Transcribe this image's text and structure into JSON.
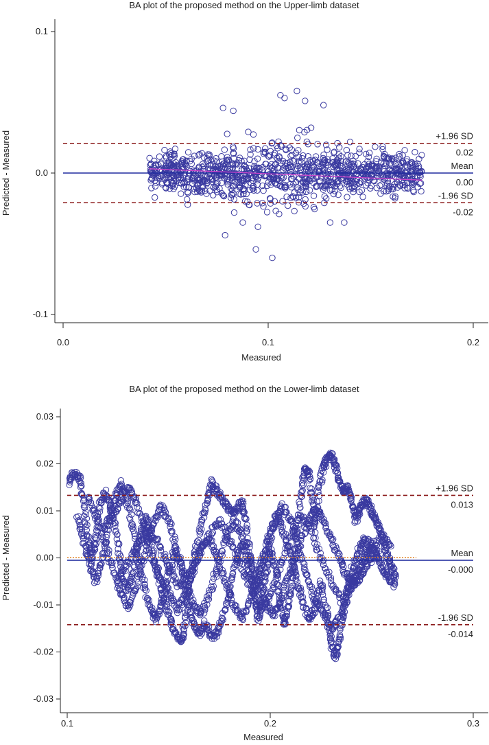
{
  "chart_data": [
    {
      "type": "scatter",
      "title": "BA plot of the proposed method on the Upper-limb dataset",
      "xlabel": "Measured",
      "ylabel": "Predicted - Measured",
      "xlim": [
        0.0,
        0.2
      ],
      "ylim": [
        -0.1,
        0.1
      ],
      "xticks": [
        0.0,
        0.1,
        0.2
      ],
      "xtick_labels": [
        "0.0",
        "0.1",
        "0.2"
      ],
      "yticks": [
        0.1,
        0.0,
        -0.1
      ],
      "ytick_labels": [
        "0.1",
        "0.0",
        "-0.1"
      ],
      "grid": false,
      "colors": {
        "points": "#3a3aa0",
        "mean": "#1f2a9e",
        "sd": "#8b1a1a",
        "trend": "#cc44cc"
      },
      "lines": [
        {
          "label": "+1.96 SD",
          "value_label": "0.02",
          "y": 0.021,
          "style": "dashed"
        },
        {
          "label": "Mean",
          "value_label": "0.00",
          "y": 0.0,
          "style": "solid"
        },
        {
          "label": "-1.96 SD",
          "value_label": "-0.02",
          "y": -0.021,
          "style": "dashed"
        }
      ],
      "trend": {
        "x": [
          0.042,
          0.175
        ],
        "y": [
          0.003,
          -0.005
        ]
      },
      "point_cloud": {
        "x_range": [
          0.042,
          0.175
        ],
        "y_sd": 0.011,
        "count": 1100
      },
      "outliers": {
        "x": [
          0.094,
          0.095,
          0.102,
          0.106,
          0.114,
          0.079,
          0.078,
          0.083,
          0.127,
          0.118,
          0.108
        ],
        "y": [
          -0.054,
          -0.038,
          -0.06,
          0.055,
          0.058,
          -0.044,
          0.046,
          0.044,
          0.048,
          0.051,
          0.053
        ]
      }
    },
    {
      "type": "scatter",
      "title": "BA plot of the proposed method on the Lower-limb dataset",
      "xlabel": "Measured",
      "ylabel": "Predicted - Measured",
      "xlim": [
        0.1,
        0.3
      ],
      "ylim": [
        -0.03,
        0.03
      ],
      "xticks": [
        0.1,
        0.2,
        0.3
      ],
      "xtick_labels": [
        "0.1",
        "0.2",
        "0.3"
      ],
      "yticks": [
        0.03,
        0.02,
        0.01,
        0.0,
        -0.01,
        -0.02,
        -0.03
      ],
      "ytick_labels": [
        "0.03",
        "0.02",
        "0.01",
        "0.00",
        "-0.01",
        "-0.02",
        "-0.03"
      ],
      "grid": false,
      "colors": {
        "points": "#3a3aa0",
        "mean": "#1f2a9e",
        "sd": "#8b1a1a",
        "trend": "#e08020"
      },
      "lines": [
        {
          "label": "+1.96 SD",
          "value_label": "0.013",
          "y": 0.0133,
          "style": "dashed"
        },
        {
          "label": "Mean",
          "value_label": "-0.000",
          "y": -0.0005,
          "style": "solid"
        },
        {
          "label": "-1.96 SD",
          "value_label": "-0.014",
          "y": -0.0142,
          "style": "dashed"
        }
      ],
      "trend": {
        "x": [
          0.1,
          0.272
        ],
        "y": [
          0.0001,
          0.0001
        ]
      },
      "trajectories": [
        [
          [
            0.101,
            0.016
          ],
          [
            0.103,
            0.018
          ],
          [
            0.106,
            0.017
          ],
          [
            0.108,
            0.012
          ],
          [
            0.11,
            0.005
          ],
          [
            0.112,
            0.0
          ],
          [
            0.114,
            0.004
          ],
          [
            0.116,
            0.011
          ],
          [
            0.119,
            0.014
          ],
          [
            0.122,
            0.01
          ],
          [
            0.125,
            0.003
          ],
          [
            0.127,
            -0.004
          ],
          [
            0.13,
            -0.007
          ],
          [
            0.133,
            -0.002
          ],
          [
            0.136,
            0.005
          ],
          [
            0.139,
            0.009
          ],
          [
            0.141,
            0.004
          ],
          [
            0.144,
            -0.003
          ],
          [
            0.147,
            -0.008
          ],
          [
            0.15,
            -0.012
          ],
          [
            0.153,
            -0.016
          ],
          [
            0.156,
            -0.018
          ],
          [
            0.158,
            -0.014
          ],
          [
            0.16,
            -0.006
          ],
          [
            0.163,
            0.001
          ],
          [
            0.166,
            0.007
          ],
          [
            0.169,
            0.012
          ],
          [
            0.171,
            0.016
          ],
          [
            0.174,
            0.014
          ],
          [
            0.177,
            0.012
          ],
          [
            0.18,
            0.01
          ],
          [
            0.183,
            0.01
          ],
          [
            0.186,
            0.012
          ],
          [
            0.188,
            0.008
          ],
          [
            0.19,
            0.0
          ],
          [
            0.192,
            -0.008
          ],
          [
            0.194,
            -0.013
          ],
          [
            0.196,
            -0.009
          ],
          [
            0.198,
            -0.003
          ],
          [
            0.2,
            0.002
          ],
          [
            0.203,
            -0.003
          ],
          [
            0.205,
            -0.01
          ],
          [
            0.207,
            -0.014
          ],
          [
            0.209,
            -0.01
          ],
          [
            0.211,
            -0.004
          ],
          [
            0.213,
            0.005
          ],
          [
            0.215,
            0.013
          ],
          [
            0.217,
            0.019
          ],
          [
            0.219,
            0.018
          ],
          [
            0.221,
            0.012
          ],
          [
            0.222,
            0.006
          ],
          [
            0.224,
            0.014
          ],
          [
            0.226,
            0.019
          ],
          [
            0.228,
            0.021
          ],
          [
            0.23,
            0.022
          ],
          [
            0.232,
            0.02
          ],
          [
            0.234,
            0.016
          ],
          [
            0.236,
            0.014
          ],
          [
            0.238,
            0.015
          ],
          [
            0.24,
            0.012
          ],
          [
            0.242,
            0.008
          ],
          [
            0.244,
            0.01
          ],
          [
            0.246,
            0.012
          ],
          [
            0.248,
            0.012
          ],
          [
            0.25,
            0.01
          ],
          [
            0.252,
            0.008
          ],
          [
            0.254,
            0.006
          ],
          [
            0.256,
            0.003
          ],
          [
            0.258,
            0.0
          ],
          [
            0.26,
            -0.002
          ],
          [
            0.262,
            -0.005
          ]
        ],
        [
          [
            0.105,
            0.009
          ],
          [
            0.108,
            0.004
          ],
          [
            0.111,
            -0.001
          ],
          [
            0.114,
            -0.005
          ],
          [
            0.117,
            -0.001
          ],
          [
            0.12,
            0.006
          ],
          [
            0.123,
            0.012
          ],
          [
            0.126,
            0.016
          ],
          [
            0.129,
            0.013
          ],
          [
            0.132,
            0.007
          ],
          [
            0.135,
            0.0
          ],
          [
            0.138,
            -0.006
          ],
          [
            0.141,
            -0.011
          ],
          [
            0.144,
            -0.013
          ],
          [
            0.147,
            -0.009
          ],
          [
            0.15,
            -0.003
          ],
          [
            0.153,
            0.002
          ],
          [
            0.156,
            -0.002
          ],
          [
            0.159,
            -0.009
          ],
          [
            0.162,
            -0.014
          ],
          [
            0.165,
            -0.016
          ],
          [
            0.168,
            -0.014
          ],
          [
            0.171,
            -0.017
          ],
          [
            0.174,
            -0.016
          ],
          [
            0.177,
            -0.012
          ],
          [
            0.18,
            -0.007
          ],
          [
            0.183,
            -0.001
          ],
          [
            0.186,
            0.003
          ],
          [
            0.189,
            -0.002
          ],
          [
            0.192,
            -0.007
          ],
          [
            0.195,
            -0.004
          ],
          [
            0.198,
            0.001
          ],
          [
            0.201,
            0.006
          ],
          [
            0.204,
            0.009
          ],
          [
            0.207,
            0.005
          ],
          [
            0.21,
            0.0
          ],
          [
            0.213,
            -0.005
          ],
          [
            0.216,
            -0.009
          ],
          [
            0.219,
            -0.013
          ],
          [
            0.222,
            -0.011
          ],
          [
            0.225,
            -0.005
          ],
          [
            0.228,
            -0.012
          ],
          [
            0.23,
            -0.018
          ],
          [
            0.232,
            -0.021
          ],
          [
            0.234,
            -0.018
          ],
          [
            0.236,
            -0.012
          ],
          [
            0.238,
            -0.007
          ],
          [
            0.24,
            -0.003
          ],
          [
            0.243,
            0.001
          ],
          [
            0.246,
            0.004
          ],
          [
            0.249,
            0.003
          ],
          [
            0.252,
            0.001
          ],
          [
            0.255,
            -0.002
          ],
          [
            0.258,
            -0.004
          ],
          [
            0.261,
            -0.006
          ]
        ],
        [
          [
            0.11,
            0.013
          ],
          [
            0.114,
            0.009
          ],
          [
            0.118,
            0.004
          ],
          [
            0.122,
            -0.002
          ],
          [
            0.126,
            -0.007
          ],
          [
            0.13,
            -0.011
          ],
          [
            0.134,
            -0.006
          ],
          [
            0.138,
            0.001
          ],
          [
            0.142,
            0.007
          ],
          [
            0.146,
            0.011
          ],
          [
            0.15,
            0.008
          ],
          [
            0.154,
            0.002
          ],
          [
            0.158,
            -0.004
          ],
          [
            0.162,
            -0.01
          ],
          [
            0.166,
            -0.012
          ],
          [
            0.17,
            -0.008
          ],
          [
            0.174,
            -0.002
          ],
          [
            0.178,
            0.004
          ],
          [
            0.182,
            0.008
          ],
          [
            0.186,
            0.005
          ],
          [
            0.19,
            0.0
          ],
          [
            0.194,
            -0.005
          ],
          [
            0.198,
            -0.01
          ],
          [
            0.202,
            -0.012
          ],
          [
            0.206,
            -0.008
          ],
          [
            0.21,
            -0.003
          ],
          [
            0.214,
            0.002
          ],
          [
            0.218,
            0.007
          ],
          [
            0.222,
            0.011
          ],
          [
            0.226,
            0.008
          ],
          [
            0.23,
            0.004
          ],
          [
            0.234,
            0.0
          ],
          [
            0.238,
            -0.004
          ],
          [
            0.242,
            -0.006
          ],
          [
            0.246,
            -0.003
          ],
          [
            0.25,
            0.0
          ],
          [
            0.254,
            0.001
          ]
        ],
        [
          [
            0.118,
            0.006
          ],
          [
            0.122,
            0.009
          ],
          [
            0.126,
            0.012
          ],
          [
            0.13,
            0.015
          ],
          [
            0.134,
            0.012
          ],
          [
            0.138,
            0.006
          ],
          [
            0.142,
            0.0
          ],
          [
            0.146,
            -0.004
          ],
          [
            0.15,
            -0.007
          ],
          [
            0.154,
            -0.011
          ],
          [
            0.158,
            -0.008
          ],
          [
            0.162,
            -0.003
          ],
          [
            0.166,
            0.002
          ],
          [
            0.17,
            0.004
          ],
          [
            0.174,
            0.0
          ],
          [
            0.178,
            -0.005
          ],
          [
            0.182,
            -0.01
          ],
          [
            0.186,
            -0.013
          ],
          [
            0.19,
            -0.009
          ],
          [
            0.194,
            -0.003
          ],
          [
            0.198,
            0.003
          ],
          [
            0.202,
            0.008
          ],
          [
            0.206,
            0.011
          ],
          [
            0.21,
            0.008
          ],
          [
            0.214,
            0.002
          ],
          [
            0.218,
            -0.004
          ],
          [
            0.222,
            -0.009
          ],
          [
            0.226,
            -0.012
          ],
          [
            0.23,
            -0.015
          ],
          [
            0.234,
            -0.013
          ],
          [
            0.238,
            -0.008
          ],
          [
            0.242,
            -0.004
          ],
          [
            0.246,
            0.0
          ],
          [
            0.25,
            0.003
          ]
        ],
        [
          [
            0.125,
            -0.005
          ],
          [
            0.13,
            -0.001
          ],
          [
            0.135,
            0.003
          ],
          [
            0.14,
            0.006
          ],
          [
            0.145,
            0.003
          ],
          [
            0.15,
            -0.002
          ],
          [
            0.155,
            -0.006
          ],
          [
            0.16,
            -0.003
          ],
          [
            0.165,
            0.001
          ],
          [
            0.17,
            0.005
          ],
          [
            0.175,
            0.008
          ],
          [
            0.18,
            0.004
          ],
          [
            0.185,
            -0.001
          ],
          [
            0.19,
            -0.006
          ],
          [
            0.195,
            -0.011
          ],
          [
            0.2,
            -0.008
          ],
          [
            0.205,
            -0.002
          ],
          [
            0.21,
            0.004
          ],
          [
            0.215,
            0.009
          ],
          [
            0.22,
            0.006
          ],
          [
            0.225,
            0.0
          ],
          [
            0.23,
            -0.005
          ],
          [
            0.235,
            -0.009
          ],
          [
            0.24,
            -0.006
          ],
          [
            0.245,
            -0.002
          ],
          [
            0.25,
            0.002
          ],
          [
            0.255,
            0.005
          ],
          [
            0.26,
            0.002
          ]
        ]
      ]
    }
  ]
}
